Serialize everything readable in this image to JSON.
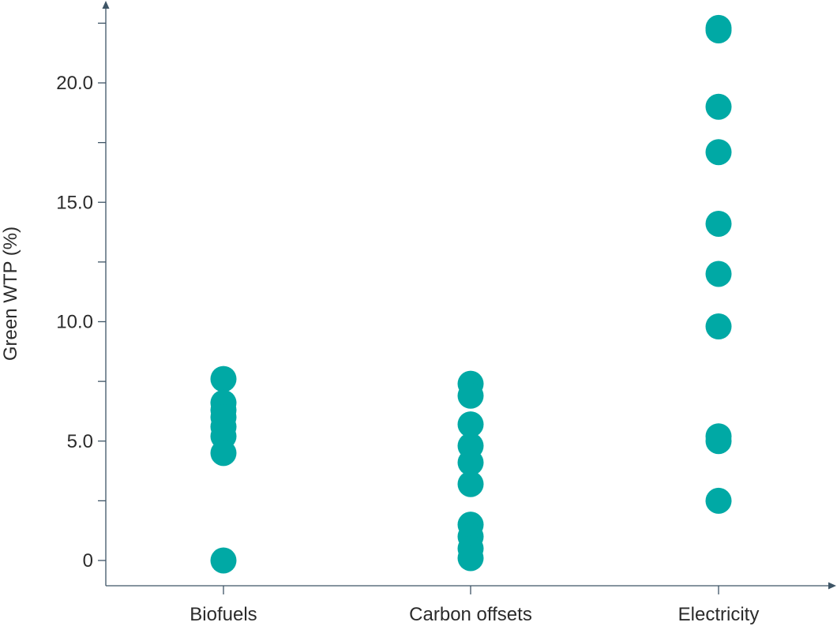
{
  "chart_data": {
    "type": "scatter",
    "title": "",
    "xlabel": "",
    "ylabel": "Green WTP (%)",
    "ylim": [
      0,
      22.5
    ],
    "yticks_major": [
      0,
      5,
      10,
      15,
      20
    ],
    "yticks_major_labels": [
      "0",
      "5.0",
      "10.0",
      "15.0",
      "20.0"
    ],
    "yticks_minor": [
      2.5,
      7.5,
      12.5,
      17.5,
      22.5
    ],
    "categories": [
      "Biofuels",
      "Carbon offsets",
      "Electricity"
    ],
    "grid": false,
    "legend": "none",
    "marker_color": "#00a9a5",
    "series": [
      {
        "category": "Biofuels",
        "values": [
          7.6,
          6.6,
          6.3,
          6.0,
          5.6,
          5.2,
          4.5,
          0.0
        ]
      },
      {
        "category": "Carbon offsets",
        "values": [
          7.4,
          6.9,
          5.7,
          4.8,
          4.1,
          3.2,
          1.5,
          1.0,
          0.5,
          0.1
        ]
      },
      {
        "category": "Electricity",
        "values": [
          22.3,
          22.2,
          19.0,
          17.1,
          14.1,
          12.0,
          9.8,
          5.2,
          5.0,
          2.5
        ]
      }
    ]
  }
}
